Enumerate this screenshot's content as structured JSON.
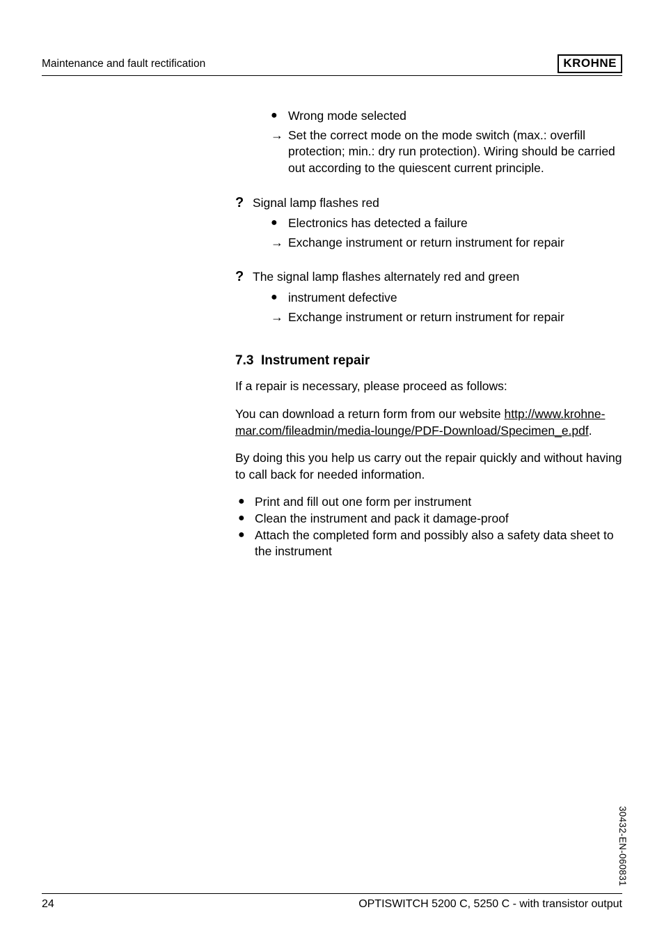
{
  "header": {
    "section": "Maintenance and fault rectification",
    "logo": "KROHNE"
  },
  "block1": {
    "bullet": "Wrong mode selected",
    "arrow": "Set the correct mode on the mode switch (max.: overfill protection; min.: dry run protection). Wiring should be carried out according to the quiescent current principle."
  },
  "block2": {
    "question": "Signal lamp flashes red",
    "bullet": "Electronics has detected a failure",
    "arrow": "Exchange instrument or return instrument for repair"
  },
  "block3": {
    "question": "The signal lamp flashes alternately red and green",
    "bullet": "instrument defective",
    "arrow": "Exchange instrument or return instrument for repair"
  },
  "section": {
    "number": "7.3",
    "title": "Instrument repair",
    "para1": "If a repair is necessary, please proceed as follows:",
    "para2_pre": "You can download a return form from our website  ",
    "para2_link": "http://www.krohne-mar.com/fileadmin/media-lounge/PDF-Download/Specimen_e.pdf",
    "para2_post": ".",
    "para3": "By doing this you help us carry out the repair quickly and without having to call back for needed information.",
    "bullets": [
      "Print and fill out one form per instrument",
      "Clean the instrument and pack it damage-proof",
      "Attach the completed form and possibly also a safety data sheet to the instrument"
    ]
  },
  "side_code": "30432-EN-060831",
  "footer": {
    "page": "24",
    "product": "OPTISWITCH 5200 C, 5250 C - with transistor output"
  }
}
